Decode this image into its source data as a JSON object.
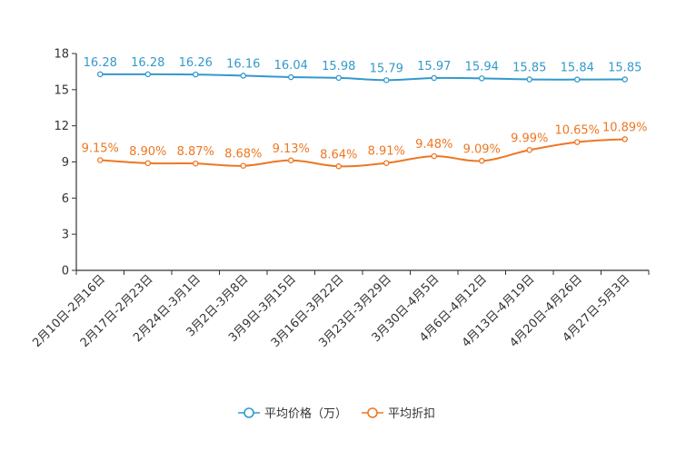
{
  "chart_data": {
    "type": "line",
    "title": "",
    "xlabel": "",
    "ylabel": "",
    "ylim": [
      0,
      18
    ],
    "yticks": [
      "0",
      "3",
      "6",
      "9",
      "12",
      "15",
      "18"
    ],
    "grid": false,
    "legend_position": "bottom-center",
    "categories": [
      "2月10日-2月16日",
      "2月17日-2月23日",
      "2月24日-3月1日",
      "3月2日-3月8日",
      "3月9日-3月15日",
      "3月16日-3月22日",
      "3月23日-3月29日",
      "3月30日-4月5日",
      "4月6日-4月12日",
      "4月13日-4月19日",
      "4月20日-4月26日",
      "4月27日-5月3日"
    ],
    "series": [
      {
        "name": "平均价格（万）",
        "color": "#3399cc",
        "values": [
          16.28,
          16.28,
          16.26,
          16.16,
          16.04,
          15.98,
          15.79,
          15.97,
          15.94,
          15.85,
          15.84,
          15.85
        ],
        "labels": [
          "16.28",
          "16.28",
          "16.26",
          "16.16",
          "16.04",
          "15.98",
          "15.79",
          "15.97",
          "15.94",
          "15.85",
          "15.84",
          "15.85"
        ]
      },
      {
        "name": "平均折扣",
        "color": "#ee7722",
        "values": [
          9.15,
          8.9,
          8.87,
          8.68,
          9.13,
          8.64,
          8.91,
          9.48,
          9.09,
          9.99,
          10.65,
          10.89
        ],
        "labels": [
          "9.15%",
          "8.90%",
          "8.87%",
          "8.68%",
          "9.13%",
          "8.64%",
          "8.91%",
          "9.48%",
          "9.09%",
          "9.99%",
          "10.65%",
          "10.89%"
        ]
      }
    ]
  }
}
